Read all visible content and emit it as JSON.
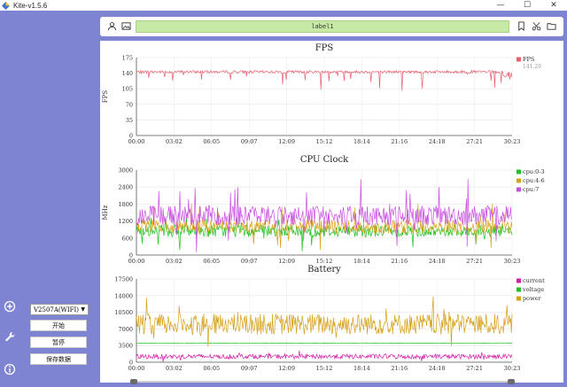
{
  "window": {
    "title": "Kite-v1.5.6",
    "minimize": "—",
    "maximize": "☐",
    "close": "✕"
  },
  "sidebar": {
    "icons": [
      "add-circle-icon",
      "wrench-icon",
      "info-icon"
    ]
  },
  "controls": {
    "device": "V2507A(WIFI)",
    "start_label": "开始",
    "pause_label": "暂停",
    "save_label": "保存数据"
  },
  "toolbar": {
    "label_value": "label1"
  },
  "time_ticks": [
    "00:00",
    "03:02",
    "06:05",
    "09:07",
    "12:09",
    "15:12",
    "18:14",
    "21:16",
    "24:18",
    "27:21",
    "30:23"
  ],
  "chart_data": [
    {
      "type": "line",
      "title": "FPS",
      "ylabel": "FPS",
      "ylim": [
        0,
        175
      ],
      "yticks": [
        0,
        35,
        70,
        105,
        140,
        175
      ],
      "series": [
        {
          "name": "FPS",
          "color": "#e8606e",
          "base": 143
        }
      ],
      "legend_value": "141.29"
    },
    {
      "type": "line",
      "title": "CPU Clock",
      "ylabel": "MHz",
      "ylim": [
        0,
        3000
      ],
      "yticks": [
        0,
        600,
        1200,
        1800,
        2400,
        3000
      ],
      "series": [
        {
          "name": "cpu:0-3",
          "color": "#1fc11f",
          "base": 850
        },
        {
          "name": "cpu:4-6",
          "color": "#d8a21a",
          "base": 1000
        },
        {
          "name": "cpu:7",
          "color": "#c84fe0",
          "base": 1400
        }
      ]
    },
    {
      "type": "line",
      "title": "Battery",
      "ylabel": "",
      "ylim": [
        0,
        17500
      ],
      "yticks": [
        0,
        3500,
        7000,
        10500,
        14000,
        17500
      ],
      "series": [
        {
          "name": "current",
          "color": "#d021a8",
          "base": 1200
        },
        {
          "name": "voltage",
          "color": "#1fc11f",
          "base": 4000
        },
        {
          "name": "power",
          "color": "#d4a017",
          "base": 8000
        }
      ]
    }
  ]
}
